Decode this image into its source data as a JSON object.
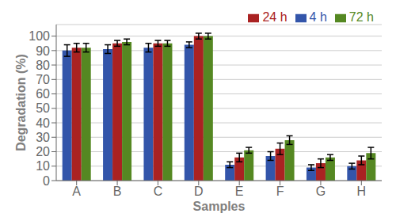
{
  "chart_data": {
    "type": "bar",
    "categories": [
      "A",
      "B",
      "C",
      "D",
      "E",
      "F",
      "G",
      "H"
    ],
    "series": [
      {
        "name": "4 h",
        "color": "#3355aa",
        "values": [
          90,
          91,
          92,
          94,
          11,
          17,
          9,
          10
        ],
        "errors": [
          4,
          3,
          3,
          2,
          2,
          3,
          2,
          2
        ]
      },
      {
        "name": "24 h",
        "color": "#aa2222",
        "values": [
          92,
          95,
          95,
          100,
          16,
          22,
          12,
          14
        ],
        "errors": [
          3,
          2,
          2,
          2,
          3,
          4,
          3,
          3
        ]
      },
      {
        "name": "72 h",
        "color": "#558822",
        "values": [
          92,
          96,
          95,
          100,
          21,
          28,
          16,
          19
        ],
        "errors": [
          3,
          2,
          2,
          2,
          2,
          3,
          2,
          4
        ]
      }
    ],
    "xlabel": "Samples",
    "ylabel": "Degradation (%)",
    "ylim": [
      0,
      108
    ],
    "yticks": [
      0,
      10,
      20,
      30,
      40,
      50,
      60,
      70,
      80,
      90,
      100
    ],
    "grid": true,
    "legend": "upper right"
  }
}
